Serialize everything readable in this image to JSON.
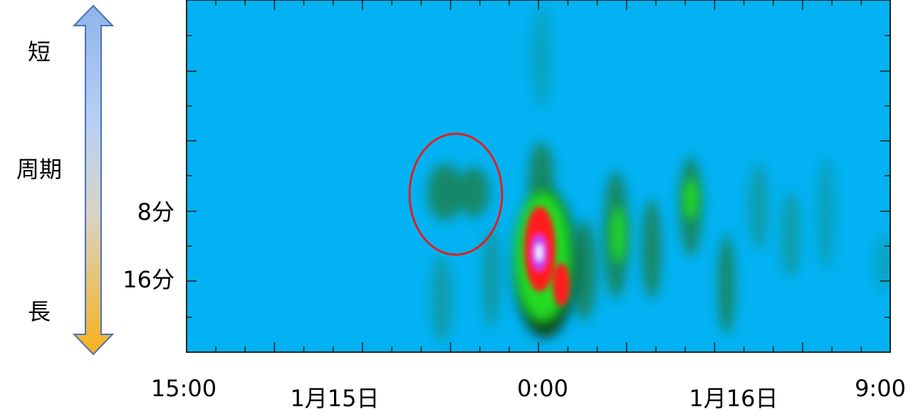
{
  "chart_data": {
    "type": "spectrogram",
    "x_tick_labels": [
      "15:00",
      "0:00",
      "9:00"
    ],
    "date_labels": [
      "1月15日",
      "1月16日"
    ],
    "y_tick_labels": [
      "8分",
      "16分"
    ],
    "axis_label": "周期",
    "arrow_labels": [
      "短",
      "長"
    ]
  }
}
